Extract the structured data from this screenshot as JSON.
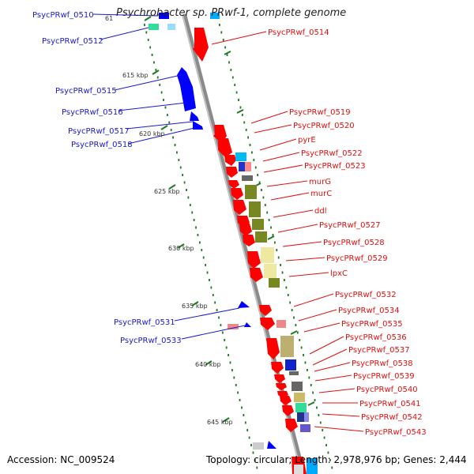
{
  "title": "Psychrobacter sp. PRwf-1, complete genome",
  "footer": {
    "accession": "Accession: NC_009524",
    "topology": "Topology: circular; Length: 2,978,976 bp; Genes: 2,444"
  },
  "colors": {
    "backbone": "#8a8a8a",
    "forward_gene": "#ff0000",
    "reverse_gene": "#0000ff",
    "tick": "#1f7a1f",
    "left_label": "#1a1ad0",
    "right_label": "#e01010"
  },
  "scale_labels": [
    "61",
    "615 kbp",
    "620 kbp",
    "625 kbp",
    "630 kbp",
    "635 kbp",
    "640 kbp",
    "645 kbp"
  ],
  "left_labels": [
    "PsycPRwf_0510",
    "PsycPRwf_0512",
    "PsycPRwf_0515",
    "PsycPRwf_0516",
    "PsycPRwf_0517",
    "PsycPRwf_0518",
    "PsycPRwf_0531",
    "PsycPRwf_0533"
  ],
  "right_labels": [
    "PsycPRwf_0514",
    "PsycPRwf_0519",
    "PsycPRwf_0520",
    "pyrE",
    "PsycPRwf_0522",
    "PsycPRwf_0523",
    "murG",
    "murC",
    "ddl",
    "PsycPRwf_0527",
    "PsycPRwf_0528",
    "PsycPRwf_0529",
    "lpxC",
    "PsycPRwf_0532",
    "PsycPRwf_0534",
    "PsycPRwf_0535",
    "PsycPRwf_0536",
    "PsycPRwf_0537",
    "PsycPRwf_0538",
    "PsycPRwf_0539",
    "PsycPRwf_0540",
    "PsycPRwf_0541",
    "PsycPRwf_0542",
    "PsycPRwf_0543"
  ]
}
